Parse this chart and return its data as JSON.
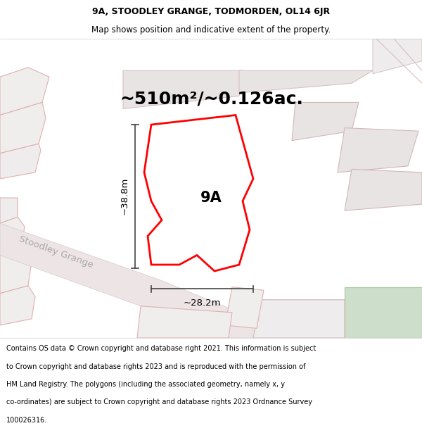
{
  "title_line1": "9A, STOODLEY GRANGE, TODMORDEN, OL14 6JR",
  "title_line2": "Map shows position and indicative extent of the property.",
  "area_label": "~510m²/~0.126ac.",
  "label_9A": "9A",
  "dim_height": "~38.8m",
  "dim_width": "~28.2m",
  "street_label": "Stoodley Grange",
  "footer_text": "Contains OS data © Crown copyright and database right 2021. This information is subject to Crown copyright and database rights 2023 and is reproduced with the permission of HM Land Registry. The polygons (including the associated geometry, namely x, y co-ordinates) are subject to Crown copyright and database rights 2023 Ordnance Survey 100026316.",
  "title_fontsize": 9,
  "subtitle_fontsize": 8.5,
  "area_fontsize": 18,
  "label_fontsize": 15,
  "dim_fontsize": 9.5,
  "street_fontsize": 9.5,
  "footer_fontsize": 7
}
